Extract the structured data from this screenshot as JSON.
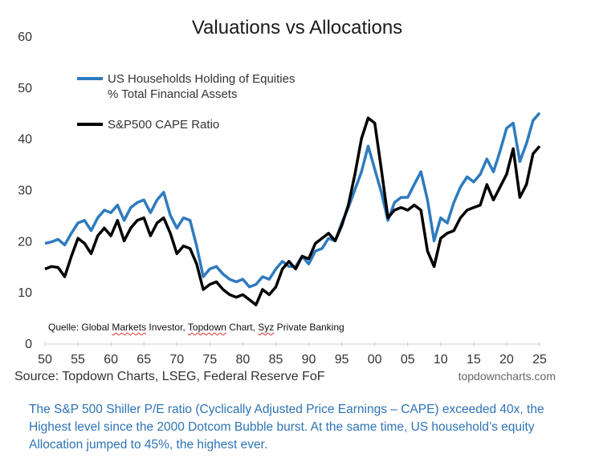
{
  "chart_data": {
    "type": "line",
    "title": "Valuations vs Allocations",
    "xlabel": "",
    "ylabel": "",
    "xlim": [
      1950,
      2025
    ],
    "ylim": [
      0,
      60
    ],
    "grid": false,
    "legend_position": "top-left",
    "x_ticks": [
      1950,
      1955,
      1960,
      1965,
      1970,
      1975,
      1980,
      1985,
      1990,
      1995,
      2000,
      2005,
      2010,
      2015,
      2020,
      2025
    ],
    "x_tick_labels": [
      "50",
      "55",
      "60",
      "65",
      "70",
      "75",
      "80",
      "85",
      "90",
      "95",
      "00",
      "05",
      "10",
      "15",
      "20",
      "25"
    ],
    "y_ticks": [
      0,
      10,
      20,
      30,
      40,
      50,
      60
    ],
    "y_tick_labels": [
      "0",
      "10",
      "20",
      "30",
      "40",
      "50",
      "60"
    ],
    "series": [
      {
        "name": "US Households Holding of Equities % Total Financial Assets",
        "legend_lines": [
          "US Households Holding of Equities",
          "% Total Financial Assets"
        ],
        "color": "#2e7bbf",
        "points": [
          [
            1950,
            19.5
          ],
          [
            1951,
            19.8
          ],
          [
            1952,
            20.3
          ],
          [
            1953,
            19.2
          ],
          [
            1954,
            21.5
          ],
          [
            1955,
            23.5
          ],
          [
            1956,
            24.0
          ],
          [
            1957,
            22.0
          ],
          [
            1958,
            24.5
          ],
          [
            1959,
            26.0
          ],
          [
            1960,
            25.5
          ],
          [
            1961,
            27.0
          ],
          [
            1962,
            24.0
          ],
          [
            1963,
            26.5
          ],
          [
            1964,
            27.5
          ],
          [
            1965,
            28.0
          ],
          [
            1966,
            25.5
          ],
          [
            1967,
            28.0
          ],
          [
            1968,
            29.5
          ],
          [
            1969,
            25.0
          ],
          [
            1970,
            22.5
          ],
          [
            1971,
            24.5
          ],
          [
            1972,
            24.0
          ],
          [
            1973,
            19.0
          ],
          [
            1974,
            13.0
          ],
          [
            1975,
            14.5
          ],
          [
            1976,
            15.0
          ],
          [
            1977,
            13.5
          ],
          [
            1978,
            12.5
          ],
          [
            1979,
            12.0
          ],
          [
            1980,
            12.5
          ],
          [
            1981,
            11.0
          ],
          [
            1982,
            11.5
          ],
          [
            1983,
            13.0
          ],
          [
            1984,
            12.5
          ],
          [
            1985,
            14.5
          ],
          [
            1986,
            16.0
          ],
          [
            1987,
            15.0
          ],
          [
            1988,
            15.0
          ],
          [
            1989,
            17.0
          ],
          [
            1990,
            15.5
          ],
          [
            1991,
            18.0
          ],
          [
            1992,
            18.5
          ],
          [
            1993,
            20.5
          ],
          [
            1994,
            20.0
          ],
          [
            1995,
            23.5
          ],
          [
            1996,
            26.5
          ],
          [
            1997,
            30.0
          ],
          [
            1998,
            33.5
          ],
          [
            1999,
            38.5
          ],
          [
            2000,
            34.0
          ],
          [
            2001,
            29.5
          ],
          [
            2002,
            24.0
          ],
          [
            2003,
            27.5
          ],
          [
            2004,
            28.5
          ],
          [
            2005,
            28.5
          ],
          [
            2006,
            31.0
          ],
          [
            2007,
            33.5
          ],
          [
            2008,
            28.0
          ],
          [
            2009,
            20.0
          ],
          [
            2010,
            24.5
          ],
          [
            2011,
            23.5
          ],
          [
            2012,
            27.5
          ],
          [
            2013,
            30.5
          ],
          [
            2014,
            32.5
          ],
          [
            2015,
            31.5
          ],
          [
            2016,
            33.0
          ],
          [
            2017,
            36.0
          ],
          [
            2018,
            33.5
          ],
          [
            2019,
            37.5
          ],
          [
            2020,
            42.0
          ],
          [
            2021,
            43.0
          ],
          [
            2022,
            35.5
          ],
          [
            2023,
            39.0
          ],
          [
            2024,
            43.5
          ],
          [
            2025,
            45.0
          ]
        ]
      },
      {
        "name": "S&P500 CAPE Ratio",
        "legend_lines": [
          "S&P500 CAPE Ratio"
        ],
        "color": "#000000",
        "points": [
          [
            1950,
            14.5
          ],
          [
            1951,
            15.0
          ],
          [
            1952,
            14.8
          ],
          [
            1953,
            13.0
          ],
          [
            1954,
            17.0
          ],
          [
            1955,
            20.5
          ],
          [
            1956,
            19.5
          ],
          [
            1957,
            17.5
          ],
          [
            1958,
            21.0
          ],
          [
            1959,
            22.5
          ],
          [
            1960,
            21.0
          ],
          [
            1961,
            24.0
          ],
          [
            1962,
            20.0
          ],
          [
            1963,
            22.5
          ],
          [
            1964,
            24.0
          ],
          [
            1965,
            24.5
          ],
          [
            1966,
            21.0
          ],
          [
            1967,
            23.5
          ],
          [
            1968,
            24.5
          ],
          [
            1969,
            21.5
          ],
          [
            1970,
            17.5
          ],
          [
            1971,
            19.0
          ],
          [
            1972,
            18.5
          ],
          [
            1973,
            15.5
          ],
          [
            1974,
            10.5
          ],
          [
            1975,
            11.5
          ],
          [
            1976,
            12.0
          ],
          [
            1977,
            10.5
          ],
          [
            1978,
            9.5
          ],
          [
            1979,
            9.0
          ],
          [
            1980,
            9.5
          ],
          [
            1981,
            8.5
          ],
          [
            1982,
            7.5
          ],
          [
            1983,
            10.5
          ],
          [
            1984,
            9.5
          ],
          [
            1985,
            11.0
          ],
          [
            1986,
            14.5
          ],
          [
            1987,
            16.0
          ],
          [
            1988,
            14.5
          ],
          [
            1989,
            17.0
          ],
          [
            1990,
            16.5
          ],
          [
            1991,
            19.5
          ],
          [
            1992,
            20.5
          ],
          [
            1993,
            21.5
          ],
          [
            1994,
            20.0
          ],
          [
            1995,
            23.0
          ],
          [
            1996,
            27.0
          ],
          [
            1997,
            33.0
          ],
          [
            1998,
            40.0
          ],
          [
            1999,
            44.0
          ],
          [
            2000,
            43.0
          ],
          [
            2001,
            34.0
          ],
          [
            2002,
            24.5
          ],
          [
            2003,
            26.0
          ],
          [
            2004,
            26.5
          ],
          [
            2005,
            26.0
          ],
          [
            2006,
            27.0
          ],
          [
            2007,
            26.0
          ],
          [
            2008,
            18.0
          ],
          [
            2009,
            15.0
          ],
          [
            2010,
            20.5
          ],
          [
            2011,
            21.5
          ],
          [
            2012,
            22.0
          ],
          [
            2013,
            24.5
          ],
          [
            2014,
            26.0
          ],
          [
            2015,
            26.5
          ],
          [
            2016,
            27.0
          ],
          [
            2017,
            31.0
          ],
          [
            2018,
            28.0
          ],
          [
            2019,
            30.5
          ],
          [
            2020,
            33.0
          ],
          [
            2021,
            38.0
          ],
          [
            2022,
            28.5
          ],
          [
            2023,
            31.0
          ],
          [
            2024,
            37.0
          ],
          [
            2025,
            38.5
          ]
        ]
      }
    ],
    "source": "Source: Topdown Charts, LSEG, Federal Reserve FoF",
    "watermark": "topdowncharts.com"
  },
  "annotation": {
    "quelle_prefix": "Quelle: Global ",
    "quelle_sq1": "Markets",
    "quelle_mid": " Investor, ",
    "quelle_sq2": "Topdown",
    "quelle_mid2": " Chart, ",
    "quelle_sq3": "Syz",
    "quelle_suffix": " Private Banking"
  },
  "caption": {
    "text": "The S&P 500 Shiller P/E ratio (Cyclically Adjusted Price Earnings – CAPE) exceeded 40x, the Highest level since the 2000 Dotcom Bubble burst. At the same time, US household’s equity Allocation jumped to 45%, the highest ever."
  }
}
